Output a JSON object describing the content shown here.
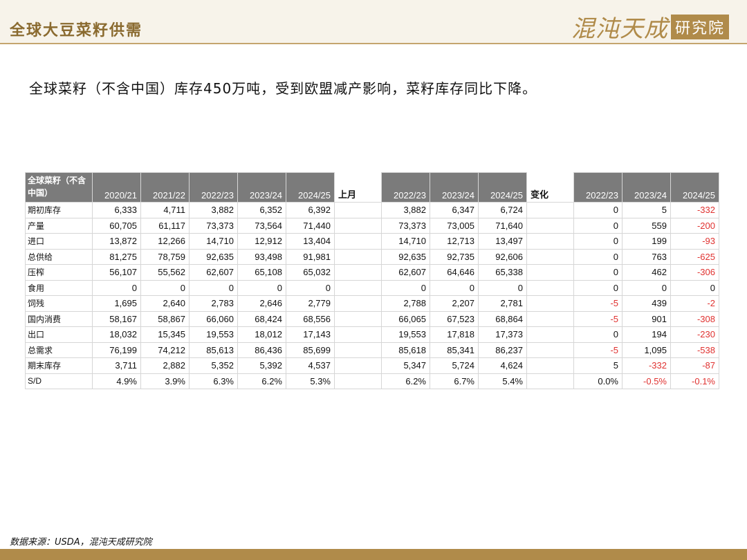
{
  "header": {
    "title": "全球大豆菜籽供需",
    "logo_script": "混沌天成",
    "logo_box": "研究院"
  },
  "subtitle": "全球菜籽（不含中国）库存450万吨，受到欧盟减产影响，菜籽库存同比下降。",
  "table": {
    "corner": "全球菜籽（不含中国）",
    "col_groups": [
      [
        "2020/21",
        "2021/22",
        "2022/23",
        "2023/24",
        "2024/25"
      ],
      [
        "2022/23",
        "2023/24",
        "2024/25"
      ],
      [
        "2022/23",
        "2023/24",
        "2024/25"
      ]
    ],
    "mid1": "上月",
    "mid2": "变化",
    "rows": [
      {
        "label": "期初库存",
        "a": [
          "6,333",
          "4,711",
          "3,882",
          "6,352",
          "6,392"
        ],
        "b": [
          "3,882",
          "6,347",
          "6,724"
        ],
        "c": [
          "0",
          "5",
          "-332"
        ]
      },
      {
        "label": "产量",
        "a": [
          "60,705",
          "61,117",
          "73,373",
          "73,564",
          "71,440"
        ],
        "b": [
          "73,373",
          "73,005",
          "71,640"
        ],
        "c": [
          "0",
          "559",
          "-200"
        ]
      },
      {
        "label": "进口",
        "a": [
          "13,872",
          "12,266",
          "14,710",
          "12,912",
          "13,404"
        ],
        "b": [
          "14,710",
          "12,713",
          "13,497"
        ],
        "c": [
          "0",
          "199",
          "-93"
        ]
      },
      {
        "label": "总供给",
        "a": [
          "81,275",
          "78,759",
          "92,635",
          "93,498",
          "91,981"
        ],
        "b": [
          "92,635",
          "92,735",
          "92,606"
        ],
        "c": [
          "0",
          "763",
          "-625"
        ]
      },
      {
        "label": "压榨",
        "a": [
          "56,107",
          "55,562",
          "62,607",
          "65,108",
          "65,032"
        ],
        "b": [
          "62,607",
          "64,646",
          "65,338"
        ],
        "c": [
          "0",
          "462",
          "-306"
        ]
      },
      {
        "label": "食用",
        "a": [
          "0",
          "0",
          "0",
          "0",
          "0"
        ],
        "b": [
          "0",
          "0",
          "0"
        ],
        "c": [
          "0",
          "0",
          "0"
        ]
      },
      {
        "label": "饲残",
        "a": [
          "1,695",
          "2,640",
          "2,783",
          "2,646",
          "2,779"
        ],
        "b": [
          "2,788",
          "2,207",
          "2,781"
        ],
        "c": [
          "-5",
          "439",
          "-2"
        ]
      },
      {
        "label": "国内消费",
        "a": [
          "58,167",
          "58,867",
          "66,060",
          "68,424",
          "68,556"
        ],
        "b": [
          "66,065",
          "67,523",
          "68,864"
        ],
        "c": [
          "-5",
          "901",
          "-308"
        ]
      },
      {
        "label": "出口",
        "a": [
          "18,032",
          "15,345",
          "19,553",
          "18,012",
          "17,143"
        ],
        "b": [
          "19,553",
          "17,818",
          "17,373"
        ],
        "c": [
          "0",
          "194",
          "-230"
        ]
      },
      {
        "label": "总需求",
        "a": [
          "76,199",
          "74,212",
          "85,613",
          "86,436",
          "85,699"
        ],
        "b": [
          "85,618",
          "85,341",
          "86,237"
        ],
        "c": [
          "-5",
          "1,095",
          "-538"
        ]
      },
      {
        "label": "期末库存",
        "a": [
          "3,711",
          "2,882",
          "5,352",
          "5,392",
          "4,537"
        ],
        "b": [
          "5,347",
          "5,724",
          "4,624"
        ],
        "c": [
          "5",
          "-332",
          "-87"
        ]
      },
      {
        "label": "S/D",
        "a": [
          "4.9%",
          "3.9%",
          "6.3%",
          "6.2%",
          "5.3%"
        ],
        "b": [
          "6.2%",
          "6.7%",
          "5.4%"
        ],
        "c": [
          "0.0%",
          "-0.5%",
          "-0.1%"
        ]
      }
    ]
  },
  "source": "数据来源：USDA，混沌天成研究院",
  "colors": {
    "negative": "#e0312f",
    "header_bg": "#7b7b7b",
    "gold": "#b08b4a"
  }
}
